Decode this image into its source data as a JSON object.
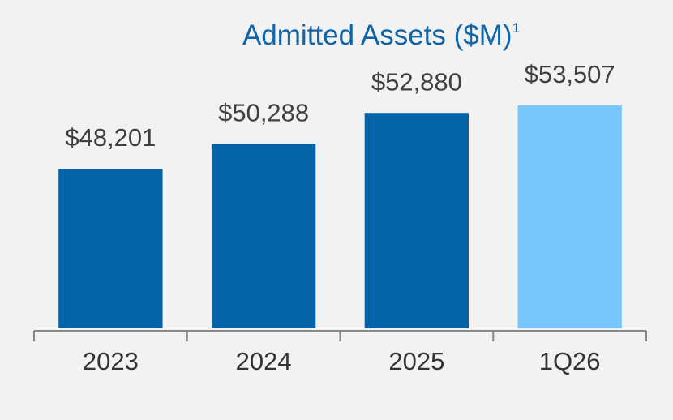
{
  "chart_data": {
    "type": "bar",
    "title": "Admitted Assets ($M)",
    "title_superscript": "1",
    "categories": [
      "2023",
      "2024",
      "2025",
      "1Q26"
    ],
    "values": [
      48201,
      50288,
      52880,
      53507
    ],
    "value_labels": [
      "$48,201",
      "$50,288",
      "$52,880",
      "$53,507"
    ],
    "colors": [
      "#0563a8",
      "#0563a8",
      "#0563a8",
      "#79c6fc"
    ],
    "ylim": [
      34800,
      55550
    ],
    "grid": false
  }
}
